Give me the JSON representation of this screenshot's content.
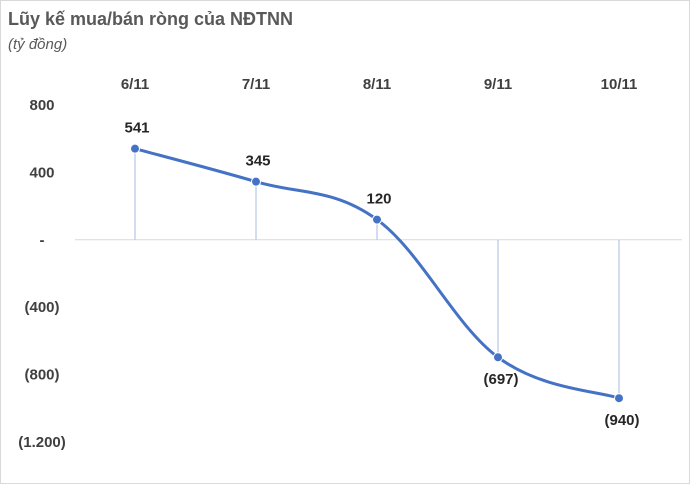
{
  "title": "Lũy kế mua/bán ròng của NĐTNN",
  "subtitle": "(tỷ đồng)",
  "chart_data": {
    "type": "line",
    "title": "Lũy kế mua/bán ròng của NĐTNN",
    "subtitle": "(tỷ đồng)",
    "categories": [
      "6/11",
      "7/11",
      "8/11",
      "9/11",
      "10/11"
    ],
    "values": [
      541,
      345,
      120,
      -697,
      -940
    ],
    "data_labels": [
      "541",
      "345",
      "120",
      "(697)",
      "(940)"
    ],
    "ylim": [
      -1200,
      800
    ],
    "y_ticks": [
      800,
      400,
      0,
      -400,
      -800,
      -1200
    ],
    "y_tick_labels": [
      "800",
      "400",
      "-",
      "(400)",
      "(800)",
      "(1.200)"
    ],
    "x_axis_position": "top",
    "smooth": true,
    "drop_lines": true,
    "grid": false,
    "line_color": "#4472C4",
    "drop_line_color": "#a6bddf"
  }
}
